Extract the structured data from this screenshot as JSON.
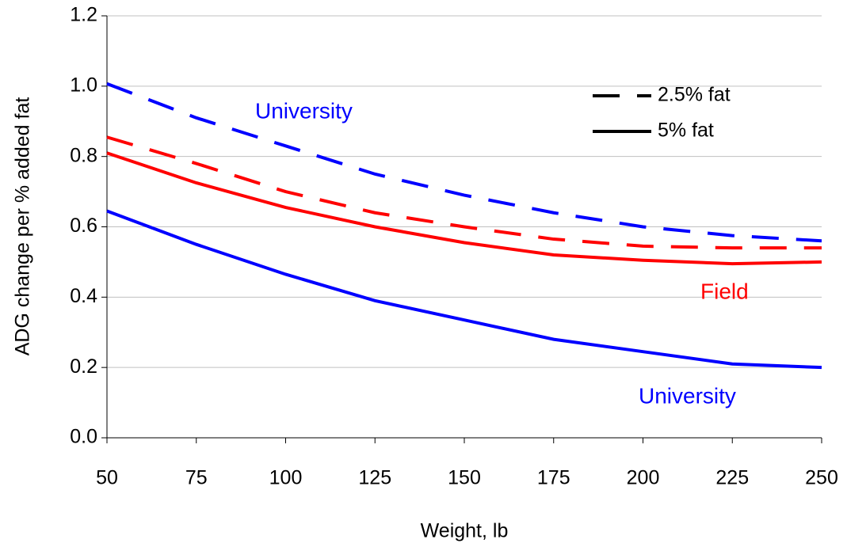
{
  "chart_data": {
    "type": "line",
    "x_label": "Weight, lb",
    "y_label": "ADG change per % added fat",
    "x": [
      50,
      75,
      100,
      125,
      150,
      175,
      200,
      225,
      250
    ],
    "series": [
      {
        "color": "#0000ff",
        "style": "dashed",
        "values": [
          1.007,
          0.91,
          0.83,
          0.75,
          0.69,
          0.64,
          0.6,
          0.575,
          0.56
        ]
      },
      {
        "color": "#ff0000",
        "style": "dashed",
        "values": [
          0.855,
          0.78,
          0.7,
          0.64,
          0.6,
          0.565,
          0.545,
          0.54,
          0.54
        ]
      },
      {
        "color": "#ff0000",
        "style": "solid",
        "values": [
          0.81,
          0.725,
          0.655,
          0.6,
          0.555,
          0.52,
          0.505,
          0.495,
          0.5
        ]
      },
      {
        "color": "#0000ff",
        "style": "solid",
        "values": [
          0.645,
          0.55,
          0.465,
          0.39,
          0.335,
          0.28,
          0.245,
          0.21,
          0.2
        ]
      }
    ],
    "legend": [
      {
        "label": "2.5% fat",
        "style": "dashed"
      },
      {
        "label": "5% fat",
        "style": "solid"
      }
    ],
    "annotations": [
      {
        "text": "University",
        "color": "#0000ff"
      },
      {
        "text": "Field",
        "color": "#ff0000"
      },
      {
        "text": "University",
        "color": "#0000ff"
      }
    ],
    "xlim": [
      50,
      250
    ],
    "xticks": [
      50,
      75,
      100,
      125,
      150,
      175,
      200,
      225,
      250
    ],
    "ylim": [
      0,
      1.2
    ],
    "yticks": [
      {
        "value": 0,
        "label": "0.0"
      },
      0.2,
      0.4,
      0.6,
      0.8,
      {
        "value": 1,
        "label": "1.0"
      },
      1.2
    ],
    "grid": true
  }
}
